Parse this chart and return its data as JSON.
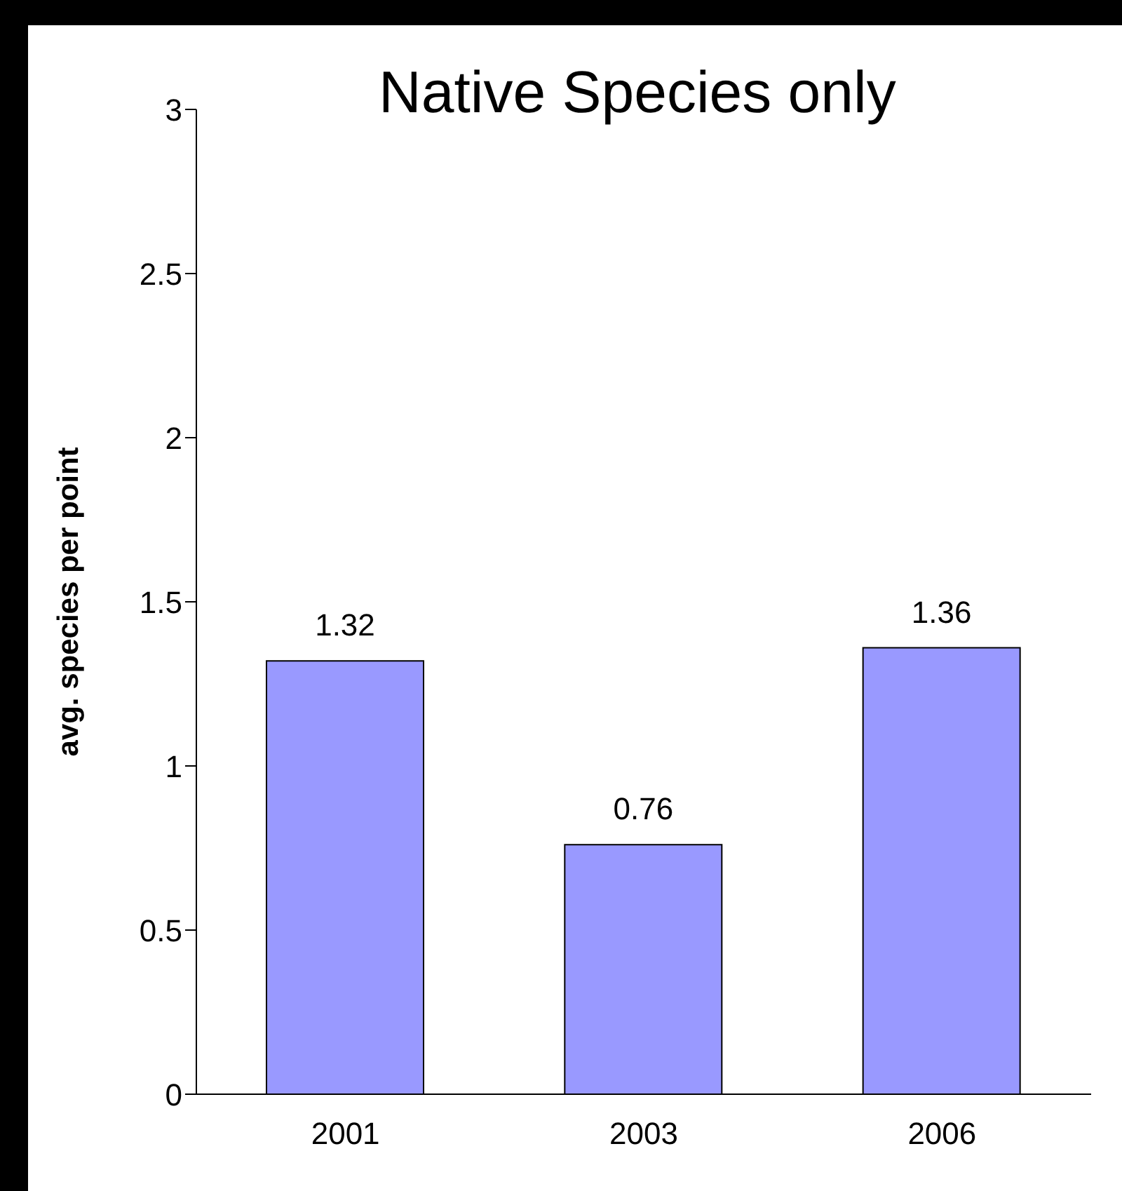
{
  "chart_data": {
    "type": "bar",
    "title": "Native Species only",
    "ylabel": "avg. species per point",
    "categories": [
      "2001",
      "2003",
      "2006"
    ],
    "values": [
      1.32,
      0.76,
      1.36
    ],
    "color": "#9999ff",
    "ylim": [
      0,
      3
    ],
    "yticks": [
      0,
      0.5,
      1,
      1.5,
      2,
      2.5,
      3
    ],
    "data_labels": true,
    "grid": false
  }
}
